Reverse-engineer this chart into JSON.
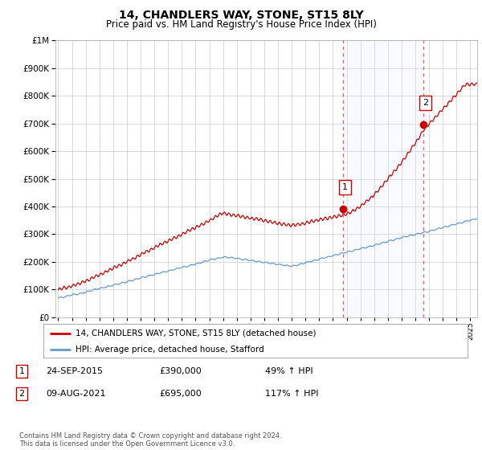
{
  "title": "14, CHANDLERS WAY, STONE, ST15 8LY",
  "subtitle": "Price paid vs. HM Land Registry's House Price Index (HPI)",
  "legend_line1": "14, CHANDLERS WAY, STONE, ST15 8LY (detached house)",
  "legend_line2": "HPI: Average price, detached house, Stafford",
  "sale1_label": "1",
  "sale1_date": "24-SEP-2015",
  "sale1_price": "£390,000",
  "sale1_hpi": "49% ↑ HPI",
  "sale1_year": 2015.73,
  "sale1_price_val": 390000,
  "sale2_label": "2",
  "sale2_date": "09-AUG-2021",
  "sale2_price": "£695,000",
  "sale2_hpi": "117% ↑ HPI",
  "sale2_year": 2021.6,
  "sale2_price_val": 695000,
  "footnote": "Contains HM Land Registry data © Crown copyright and database right 2024.\nThis data is licensed under the Open Government Licence v3.0.",
  "line_color_red": "#cc0000",
  "line_color_blue": "#6699cc",
  "vline_color": "#dd6666",
  "shade_color": "#dde8ff",
  "plot_bg": "#ffffff",
  "grid_color": "#cccccc",
  "ylim": [
    0,
    1000000
  ],
  "xlim_start": 1994.8,
  "xlim_end": 2025.5,
  "title_fontsize": 10,
  "subtitle_fontsize": 8.5
}
